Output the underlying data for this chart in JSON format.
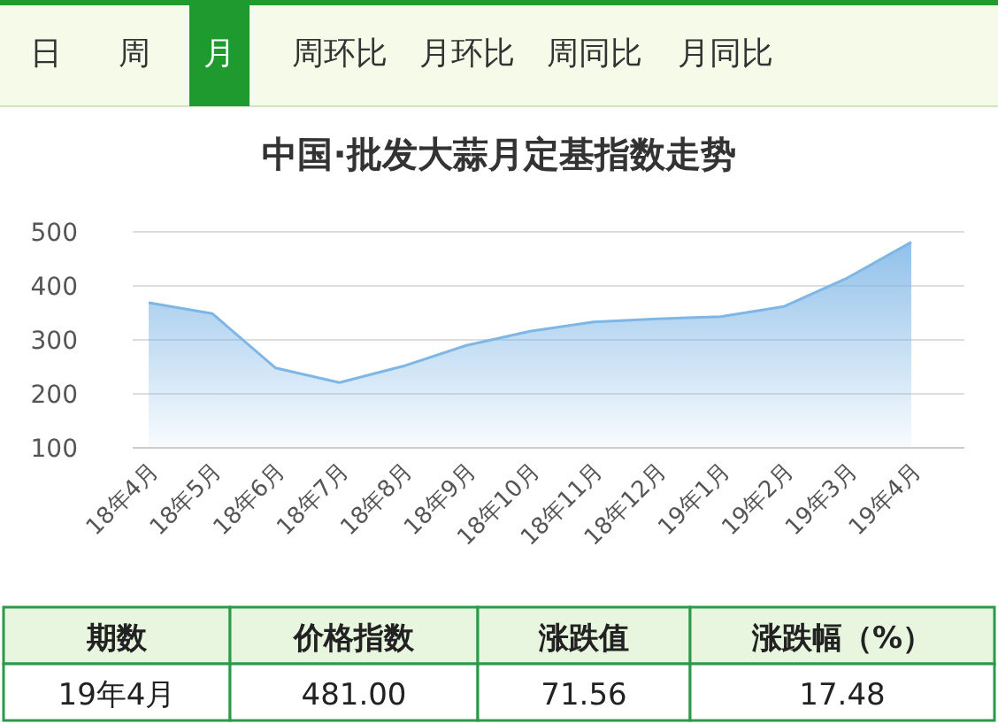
{
  "chart_data": {
    "type": "area",
    "title": "中国·批发大蒜月定基指数走势",
    "categories": [
      "18年4月",
      "18年5月",
      "18年6月",
      "18年7月",
      "18年8月",
      "18年9月",
      "18年10月",
      "18年11月",
      "18年12月",
      "19年1月",
      "19年2月",
      "19年3月",
      "19年4月"
    ],
    "values": [
      369,
      349,
      248,
      221,
      251,
      290,
      316,
      333,
      339,
      343,
      362,
      415,
      481
    ],
    "color": "#7eb6e6",
    "ylim": [
      100,
      500
    ],
    "yticks": [
      100,
      200,
      300,
      400,
      500
    ],
    "grid": "y",
    "annotations": [
      "日",
      "周",
      "月",
      "周环比",
      "月环比",
      "周同比",
      "月同比",
      "期数",
      "价格指数",
      "涨跌值",
      "涨跌幅（%）",
      "19年4月",
      "481.00",
      "71.56",
      "17.48"
    ]
  }
}
